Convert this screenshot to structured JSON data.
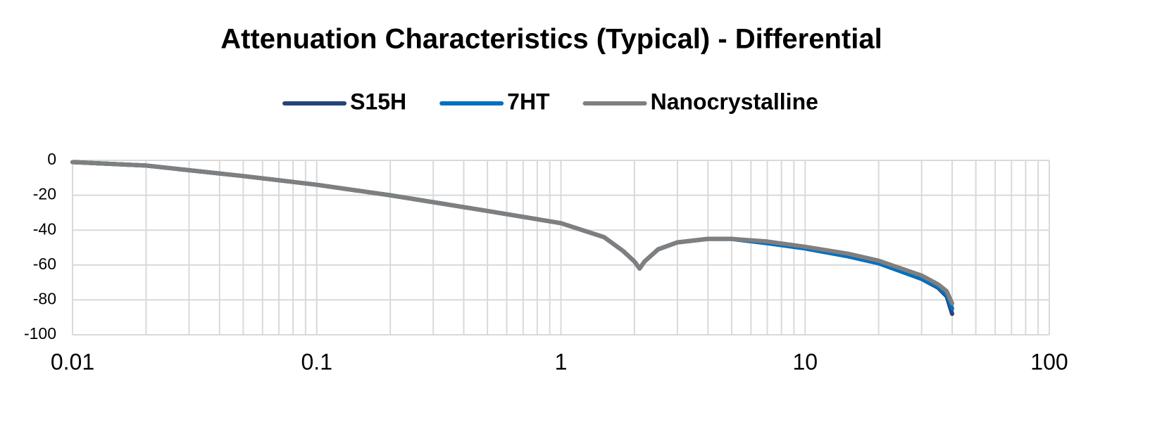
{
  "chart_data": {
    "type": "line",
    "title": "Attenuation Characteristics (Typical) - Differential",
    "x": [
      0.01,
      0.02,
      0.05,
      0.1,
      0.2,
      0.5,
      1,
      1.5,
      1.8,
      2.0,
      2.1,
      2.2,
      2.5,
      3,
      4,
      5,
      7,
      10,
      15,
      20,
      30,
      35,
      38,
      40
    ],
    "series": [
      {
        "name": "S15H",
        "color": "#264478",
        "values": [
          -1,
          -3,
          -9,
          -14,
          -20,
          -29,
          -36,
          -44,
          -52,
          -58,
          -62,
          -58,
          -51,
          -47,
          -45,
          -45,
          -47.5,
          -50.5,
          -55,
          -59,
          -68,
          -73,
          -78,
          -88
        ]
      },
      {
        "name": "7HT",
        "color": "#0070c0",
        "values": [
          -1,
          -3,
          -9,
          -14,
          -20,
          -29,
          -36,
          -44,
          -52,
          -58,
          -62,
          -58,
          -51,
          -47,
          -45,
          -45,
          -47.5,
          -50.5,
          -55,
          -59,
          -68,
          -72.5,
          -77,
          -85
        ]
      },
      {
        "name": "Nanocrystalline",
        "color": "#7f7f7f",
        "values": [
          -1,
          -3,
          -9,
          -14,
          -20,
          -29,
          -36,
          -44,
          -52,
          -58,
          -62,
          -58,
          -51,
          -47,
          -45,
          -45,
          -46.5,
          -49.5,
          -53.5,
          -57.5,
          -66,
          -71,
          -75,
          -82
        ]
      }
    ],
    "xscale": "log",
    "xlim": [
      0.01,
      100
    ],
    "xticks": [
      0.01,
      0.1,
      1,
      10,
      100
    ],
    "ylim": [
      -100,
      0
    ],
    "yticks": [
      -100,
      -80,
      -60,
      -40,
      -20,
      0
    ],
    "grid": true,
    "minor_grid": true,
    "legend": "top"
  }
}
